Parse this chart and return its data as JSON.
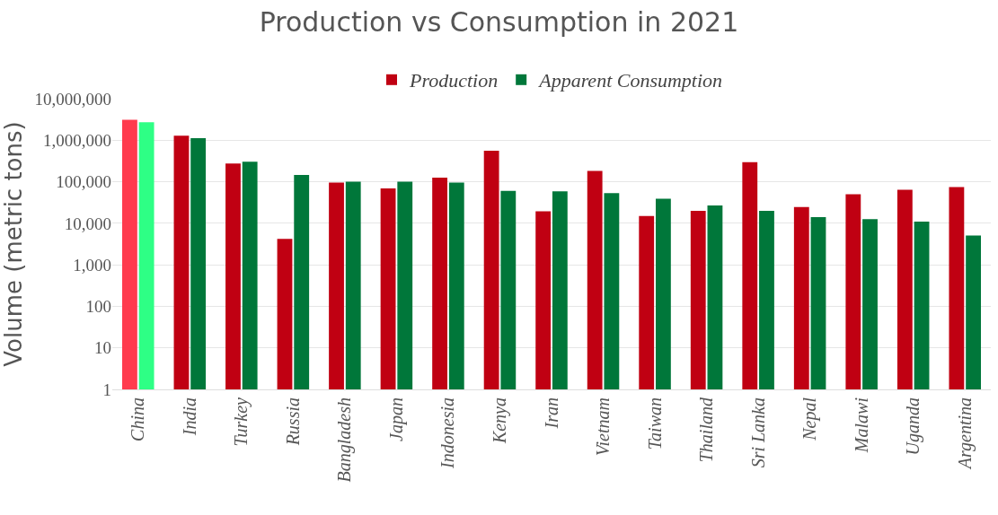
{
  "chart_data": {
    "type": "bar",
    "title": "Production vs Consumption in 2021",
    "ylabel": "Volume (metric tons)",
    "categories": [
      "China",
      "India",
      "Turkey",
      "Russia",
      "Bangladesh",
      "Japan",
      "Indonesia",
      "Kenya",
      "Iran",
      "Vietnam",
      "Taiwan",
      "Thailand",
      "Sri Lanka",
      "Nepal",
      "Malawi",
      "Uganda",
      "Argentina"
    ],
    "series": [
      {
        "name": "Production",
        "color": "#c00012",
        "colors": [
          "#ff3b4e",
          "#c00012",
          "#c00012",
          "#c00012",
          "#c00012",
          "#c00012",
          "#c00012",
          "#c00012",
          "#c00012",
          "#c00012",
          "#c00012",
          "#c00012",
          "#c00012",
          "#c00012",
          "#c00012",
          "#c00012",
          "#c00012"
        ],
        "values": [
          3100000,
          1290000,
          275000,
          4200,
          96000,
          69000,
          126000,
          560000,
          19500,
          182000,
          15000,
          20000,
          295000,
          24500,
          50000,
          64000,
          74000
        ]
      },
      {
        "name": "Apparent Consumption",
        "color": "#00773a",
        "colors": [
          "#2eff85",
          "#00773a",
          "#00773a",
          "#00773a",
          "#00773a",
          "#00773a",
          "#00773a",
          "#00773a",
          "#00773a",
          "#00773a",
          "#00773a",
          "#00773a",
          "#00773a",
          "#00773a",
          "#00773a",
          "#00773a",
          "#00773a"
        ],
        "values": [
          2700000,
          1120000,
          305000,
          145000,
          100000,
          100000,
          96000,
          60000,
          59000,
          53000,
          39000,
          27000,
          20000,
          14000,
          12600,
          11000,
          5100
        ]
      }
    ],
    "log": "y",
    "ylim": [
      1,
      10000000
    ],
    "yticks": [
      1,
      10,
      100,
      {
        "value": 1000,
        "label": "1,000"
      },
      {
        "value": 10000,
        "label": "10,000"
      },
      {
        "value": 100000,
        "label": "100,000"
      },
      {
        "value": 1000000,
        "label": "1,000,000"
      },
      {
        "value": 10000000,
        "label": "10,000,000"
      }
    ],
    "grid": "y",
    "legend": "top"
  }
}
